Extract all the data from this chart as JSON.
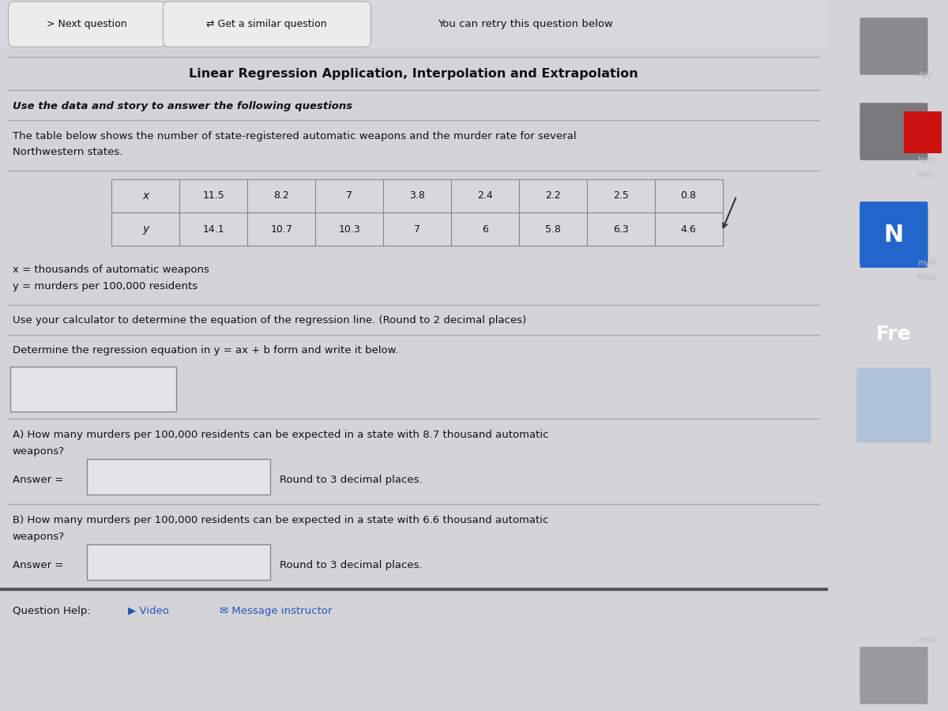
{
  "title": "Linear Regression Application, Interpolation and Extrapolation",
  "subtitle": "Use the data and story to answer the following questions",
  "description_line1": "The table below shows the number of state-registered automatic weapons and the murder rate for several",
  "description_line2": "Northwestern states.",
  "x_values": [
    11.5,
    8.2,
    7,
    3.8,
    2.4,
    2.2,
    2.5,
    0.8
  ],
  "y_values": [
    14.1,
    10.7,
    10.3,
    7,
    6,
    5.8,
    6.3,
    4.6
  ],
  "x_label": "x = thousands of automatic weapons",
  "y_label": "y = murders per 100,000 residents",
  "instruction1": "Use your calculator to determine the equation of the regression line. (Round to 2 decimal places)",
  "instruction2": "Determine the regression equation in y = ax + b form and write it below.",
  "question_a": "A) How many murders per 100,000 residents can be expected in a state with 8.7 thousand automatic",
  "question_a2": "weapons?",
  "question_b": "B) How many murders per 100,000 residents can be expected in a state with 6.6 thousand automatic",
  "question_b2": "weapons?",
  "answer_label": "Answer =",
  "round_note": "Round to 3 decimal places.",
  "help_text": "Question Help:",
  "video_text": "Video",
  "message_text": "Message instructor",
  "next_btn": "> Next question",
  "similar_btn": "Get a similar question",
  "retry_text": "You can retry this question below",
  "main_bg": "#d4d4d8",
  "content_bg": "#e0e0e4",
  "right_panel_bg": "#1a1a2e",
  "nav_bg": "#d8d8dc",
  "btn_bg": "#ececec",
  "btn_border": "#aaaaaa",
  "table_bg": "#d8d8dc",
  "table_border": "#888888",
  "line_color": "#aaaaaa",
  "text_color": "#111111",
  "input_box_bg": "#e8e8ec",
  "input_box_border": "#888888"
}
